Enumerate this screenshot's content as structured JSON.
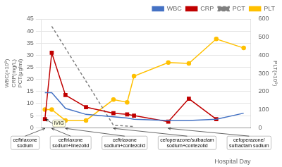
{
  "chart_data": {
    "type": "line",
    "x": [
      1,
      2,
      4,
      7,
      11,
      13,
      14,
      19,
      22,
      26,
      30
    ],
    "xlim": [
      0.5,
      31
    ],
    "xlabel": "Hospital Day",
    "ylabel": "WBC(×10⁹)\nCRP(mg/L)\nPCT(μg/ml)",
    "y2label": "PLT(×10⁹)",
    "ylim": [
      0,
      45
    ],
    "yticks": [
      0,
      5,
      10,
      15,
      20,
      25,
      30,
      35,
      40,
      45
    ],
    "y2lim": [
      0,
      600
    ],
    "y2ticks": [
      0,
      100,
      200,
      300,
      400,
      500,
      600
    ],
    "grid": true,
    "legend": "upper right",
    "tick_labels": "y",
    "series": [
      {
        "name": "WBC",
        "color": "#4472C4",
        "marker": "none",
        "line_style": "solid",
        "values": [
          14.5,
          14.5,
          8.0,
          5.5,
          4.5,
          4.0,
          3.5,
          3.0,
          3.0,
          3.5,
          6.0
        ]
      },
      {
        "name": "CRP",
        "color": "#C00000",
        "marker": "square",
        "line_style": "solid",
        "values": [
          3.5,
          31.0,
          13.5,
          8.5,
          6.0,
          5.5,
          5.0,
          2.5,
          12.0,
          3.5,
          null
        ]
      },
      {
        "name": "PCT",
        "color": "#808080",
        "marker": "none",
        "line_style": "dashed",
        "values": [
          null,
          42.0,
          null,
          null,
          1.0,
          null,
          0.5,
          null,
          null,
          null,
          null
        ]
      },
      {
        "name": "PLT",
        "color": "#FFC000",
        "marker": "circle",
        "line_style": "solid",
        "axis": "y2",
        "values": [
          100,
          100,
          40,
          40,
          155,
          140,
          285,
          360,
          355,
          490,
          440
        ]
      }
    ],
    "annotations": [
      {
        "text": "IVIG",
        "x": 1.1,
        "y": 3.5
      },
      {
        "text": "ceftriaxone\nsodium",
        "x": 1
      },
      {
        "text": "ceftriaxone\nsodium+linezolid",
        "x": 2
      },
      {
        "text": "ceftriaxone\nsodium+contezolid",
        "x": 4
      },
      {
        "text": "cefoperazone/sulbactam\nsodium+contezolid",
        "x": 11
      },
      {
        "text": "cefoperazone/\nsulbactam sodium",
        "x": 19
      }
    ]
  }
}
